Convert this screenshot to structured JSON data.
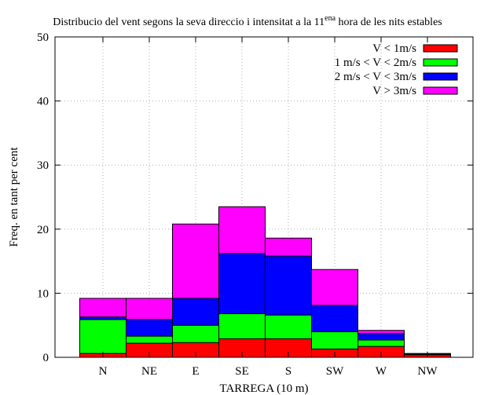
{
  "chart_data": {
    "type": "bar",
    "stacked": true,
    "title": "Distribucio del vent segons la seva direccio i intensitat a la 11",
    "title_superscript": "ena",
    "title_suffix": " hora de les nits estables",
    "xlabel": "TARREGA (10 m)",
    "ylabel": "Freq. en tant per cent",
    "ylim": [
      0,
      50
    ],
    "yticks": [
      "0",
      "10",
      "20",
      "30",
      "40",
      "50"
    ],
    "grid": true,
    "legend_position": "top-right",
    "categories": [
      "N",
      "NE",
      "E",
      "SE",
      "S",
      "SW",
      "W",
      "NW"
    ],
    "series": [
      {
        "name": "V < 1m/s",
        "color": "#ff0000",
        "values": [
          0.6,
          2.2,
          2.3,
          2.9,
          2.9,
          1.3,
          1.7,
          0.4
        ]
      },
      {
        "name": "1 m/s < V < 2m/s",
        "color": "#00ff00",
        "values": [
          5.3,
          1.1,
          2.7,
          3.9,
          3.7,
          2.7,
          1.0,
          0.1
        ]
      },
      {
        "name": "2 m/s < V < 3m/s",
        "color": "#0000ff",
        "values": [
          0.4,
          2.6,
          4.2,
          9.4,
          9.2,
          4.1,
          1.0,
          0.1
        ]
      },
      {
        "name": "V > 3m/s",
        "color": "#ff00ff",
        "values": [
          2.9,
          3.3,
          11.6,
          7.3,
          2.8,
          5.6,
          0.5,
          0.0
        ]
      }
    ]
  }
}
